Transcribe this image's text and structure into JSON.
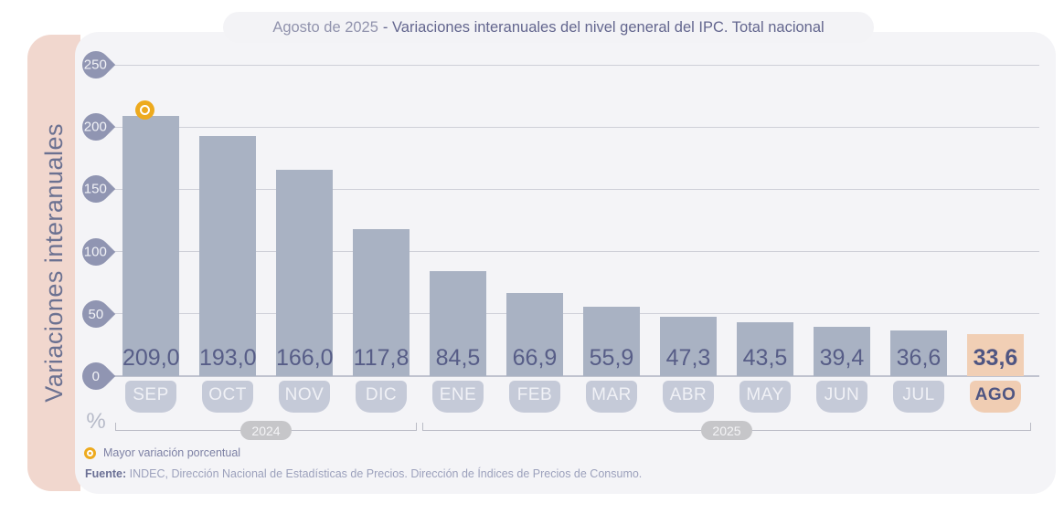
{
  "title": {
    "prefix": "Agosto de 2025",
    "main": "- Variaciones interanuales del nivel general del IPC. Total nacional"
  },
  "y_axis": {
    "label": "Variaciones interanuales",
    "unit": "%",
    "ticks": [
      250,
      200,
      150,
      100,
      50,
      0
    ]
  },
  "chart_data": {
    "type": "bar",
    "title": "Agosto de 2025 - Variaciones interanuales del nivel general del IPC. Total nacional",
    "ylabel": "Variaciones interanuales",
    "unit": "%",
    "ylim": [
      0,
      250
    ],
    "grid": true,
    "categories": [
      "SEP",
      "OCT",
      "NOV",
      "DIC",
      "ENE",
      "FEB",
      "MAR",
      "ABR",
      "MAY",
      "JUN",
      "JUL",
      "AGO"
    ],
    "values": [
      209.0,
      193.0,
      166.0,
      117.8,
      84.5,
      66.9,
      55.9,
      47.3,
      43.5,
      39.4,
      36.6,
      33.6
    ],
    "value_labels": [
      "209,0",
      "193,0",
      "166,0",
      "117,8",
      "84,5",
      "66,9",
      "55,9",
      "47,3",
      "43,5",
      "39,4",
      "36,6",
      "33,6"
    ],
    "highlight_index": 11,
    "max_marker_index": 0,
    "groups": [
      {
        "label": "2024",
        "from": 0,
        "to": 3
      },
      {
        "label": "2025",
        "from": 4,
        "to": 11
      }
    ]
  },
  "legend": {
    "marker_icon": "yellow-ring-circle",
    "label": "Mayor variación porcentual"
  },
  "source": {
    "bold": "Fuente:",
    "text": " INDEC, Dirección Nacional de Estadísticas de Precios. Dirección de Índices de Precios de Consumo."
  },
  "colors": {
    "bar": "#a9b2c3",
    "highlight_bar": "#f1cfb5",
    "highlight_badge": "#f0cdb3",
    "marker_yellow": "#edaa1e",
    "tick_badge": "#9095b2",
    "band_pink": "#f1d7ce",
    "panel_bg": "#f4f4f7",
    "value_text": "#575d87"
  }
}
